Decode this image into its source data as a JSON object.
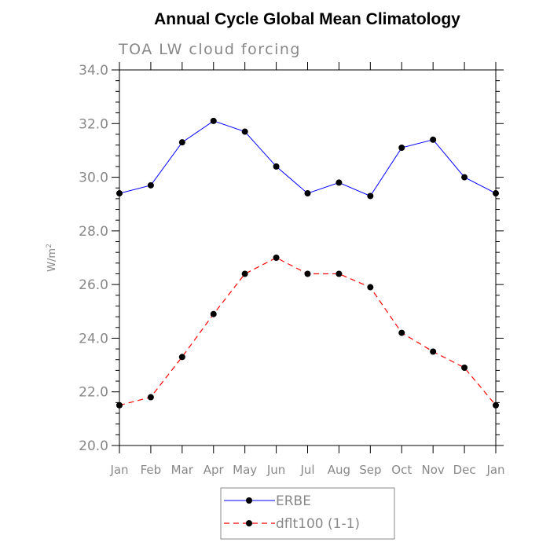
{
  "chart_data": {
    "type": "line",
    "title": "Annual Cycle Global Mean Climatology",
    "subtitle": "TOA LW cloud forcing",
    "xlabel": "",
    "ylabel": "W/m",
    "ylabel_superscript": "2",
    "categories": [
      "Jan",
      "Feb",
      "Mar",
      "Apr",
      "May",
      "Jun",
      "Jul",
      "Aug",
      "Sep",
      "Oct",
      "Nov",
      "Dec",
      "Jan"
    ],
    "ylim": [
      20.0,
      34.0
    ],
    "yticks": [
      20.0,
      22.0,
      24.0,
      26.0,
      28.0,
      30.0,
      32.0,
      34.0
    ],
    "ytick_labels": [
      "20.0",
      "22.0",
      "24.0",
      "26.0",
      "28.0",
      "30.0",
      "32.0",
      "34.0"
    ],
    "grid": false,
    "legend_position": "bottom-center",
    "series": [
      {
        "name": "ERBE",
        "color": "#0000ff",
        "line_style": "solid",
        "marker": "filled-circle",
        "values": [
          29.4,
          29.7,
          31.3,
          32.1,
          31.7,
          30.4,
          29.4,
          29.8,
          29.3,
          31.1,
          31.4,
          30.0,
          29.4
        ]
      },
      {
        "name": "dflt100 (1-1)",
        "color": "#ff0000",
        "line_style": "dashed",
        "marker": "filled-circle",
        "values": [
          21.5,
          21.8,
          23.3,
          24.9,
          26.4,
          27.0,
          26.4,
          26.4,
          25.9,
          24.2,
          23.5,
          22.9,
          21.5
        ]
      }
    ]
  }
}
